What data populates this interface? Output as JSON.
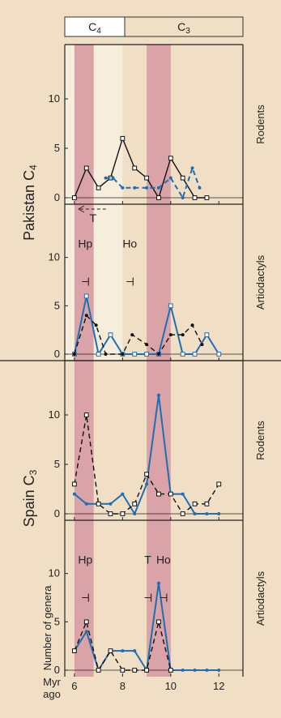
{
  "figure": {
    "bar_labels": [
      {
        "main": "C",
        "sub": "4"
      },
      {
        "main": "C",
        "sub": "3"
      }
    ],
    "side_groups": [
      {
        "main": "Pakistan C",
        "sub": "4"
      },
      {
        "main": "Spain C",
        "sub": "3"
      }
    ],
    "ylabel": "Number of genera",
    "xlabel_main": "Myr",
    "xlabel_sub": "ago",
    "colors": {
      "background": "#f1dfc5",
      "pale_band": "#f7eddc",
      "pink_band": "#d9a3a7",
      "blue": "#1f6eb3",
      "black": "#111111"
    }
  },
  "chart_data": [
    {
      "type": "line",
      "panel_label": "Rodents",
      "xlim": [
        5.6,
        13.0
      ],
      "ylim": [
        0,
        15
      ],
      "yticks": [
        0,
        5,
        10
      ],
      "xticks": [
        6,
        8,
        10,
        12
      ],
      "show_xtick_labels": false,
      "bands": [
        {
          "from": 5.6,
          "to": 8.0,
          "kind": "pale"
        },
        {
          "from": 6.0,
          "to": 6.8,
          "kind": "pink"
        },
        {
          "from": 9.0,
          "to": 10.0,
          "kind": "pink"
        }
      ],
      "series": [
        {
          "color": "black",
          "dash": false,
          "marker": "square",
          "x": [
            6.0,
            6.5,
            7.0,
            7.5,
            8.0,
            8.5,
            9.0,
            9.5,
            10.0,
            10.5,
            11.0,
            11.5
          ],
          "y": [
            0,
            3,
            1,
            2,
            6,
            3,
            2,
            0,
            4,
            2,
            0,
            0
          ]
        },
        {
          "color": "blue",
          "dash": true,
          "marker": "dot",
          "x": [
            7.3,
            7.6,
            8.0,
            8.5,
            9.0,
            9.5,
            10.0,
            10.5,
            10.9,
            11.2
          ],
          "y": [
            2,
            2,
            1,
            1,
            1,
            1,
            2,
            0,
            3,
            1
          ]
        }
      ],
      "annotations": [
        {
          "text": "T",
          "x": 6.3,
          "y": -2.0,
          "arrow": "left"
        }
      ]
    },
    {
      "type": "line",
      "panel_label": "Artiodactyls",
      "xlim": [
        5.6,
        13.0
      ],
      "ylim": [
        0,
        15
      ],
      "yticks": [
        0,
        5,
        10
      ],
      "xticks": [
        6,
        8,
        10,
        12
      ],
      "show_xtick_labels": false,
      "bands": [
        {
          "from": 5.6,
          "to": 8.0,
          "kind": "pale"
        },
        {
          "from": 6.0,
          "to": 6.8,
          "kind": "pink"
        },
        {
          "from": 9.0,
          "to": 10.0,
          "kind": "pink"
        }
      ],
      "series": [
        {
          "color": "blue",
          "dash": false,
          "marker": "square",
          "x": [
            6.0,
            6.5,
            7.0,
            7.5,
            8.0,
            8.5,
            9.0,
            9.5,
            10.0,
            10.5,
            11.0,
            11.5,
            12.0
          ],
          "y": [
            0,
            6,
            0,
            2,
            0,
            0,
            0,
            0,
            5,
            0,
            0,
            2,
            0
          ]
        },
        {
          "color": "black",
          "dash": true,
          "marker": "dot",
          "x": [
            6.0,
            6.5,
            6.9,
            7.3,
            8.0,
            8.4,
            9.0,
            9.5,
            10.0,
            10.5,
            10.9,
            11.3
          ],
          "y": [
            0,
            4,
            3,
            0,
            0,
            2,
            1,
            0,
            2,
            2,
            3,
            1
          ]
        }
      ],
      "annotations": [
        {
          "text": "Hp",
          "x": 6.45,
          "y": 11.0,
          "marker_y": 7.5
        },
        {
          "text": "Ho",
          "x": 8.3,
          "y": 11.0,
          "marker_y": 7.5
        }
      ]
    },
    {
      "type": "line",
      "panel_label": "Rodents",
      "xlim": [
        5.6,
        13.0
      ],
      "ylim": [
        0,
        15
      ],
      "yticks": [
        0,
        5,
        10
      ],
      "xticks": [
        6,
        8,
        10,
        12
      ],
      "show_xtick_labels": false,
      "bands": [
        {
          "from": 6.0,
          "to": 6.8,
          "kind": "pink"
        },
        {
          "from": 9.0,
          "to": 10.0,
          "kind": "pink"
        }
      ],
      "series": [
        {
          "color": "blue",
          "dash": false,
          "marker": "dot",
          "x": [
            6.0,
            6.5,
            7.0,
            7.5,
            8.0,
            8.5,
            9.0,
            9.5,
            10.0,
            10.5,
            11.0,
            11.5,
            12.0
          ],
          "y": [
            2,
            1,
            1,
            1,
            2,
            0,
            3,
            12,
            2,
            2,
            0,
            0,
            0
          ]
        },
        {
          "color": "black",
          "dash": true,
          "marker": "square",
          "x": [
            6.0,
            6.5,
            7.0,
            7.5,
            8.0,
            8.5,
            9.0,
            9.5,
            10.0,
            10.5,
            11.0,
            11.5,
            12.0
          ],
          "y": [
            3,
            10,
            1,
            0,
            0,
            1,
            4,
            2,
            2,
            0,
            1,
            1,
            3
          ]
        }
      ],
      "annotations": []
    },
    {
      "type": "line",
      "panel_label": "Artiodactyls",
      "xlim": [
        5.6,
        13.0
      ],
      "ylim": [
        0,
        15
      ],
      "yticks": [
        0,
        5,
        10
      ],
      "xticks": [
        6,
        8,
        10,
        12
      ],
      "show_xtick_labels": true,
      "bands": [
        {
          "from": 6.0,
          "to": 6.8,
          "kind": "pink"
        },
        {
          "from": 9.0,
          "to": 10.0,
          "kind": "pink"
        }
      ],
      "series": [
        {
          "color": "blue",
          "dash": false,
          "marker": "dot",
          "x": [
            6.0,
            6.5,
            7.0,
            7.5,
            8.0,
            8.5,
            9.0,
            9.5,
            10.0,
            10.5,
            11.0,
            11.5,
            12.0
          ],
          "y": [
            2,
            4,
            0,
            2,
            2,
            2,
            0,
            9,
            0,
            0,
            0,
            0,
            0
          ]
        },
        {
          "color": "black",
          "dash": true,
          "marker": "square",
          "x": [
            6.0,
            6.5,
            7.0,
            7.5,
            8.0,
            8.5,
            9.0,
            9.5,
            10.0
          ],
          "y": [
            2,
            5,
            0,
            2,
            0,
            0,
            0,
            5,
            0
          ]
        }
      ],
      "annotations": [
        {
          "text": "Hp",
          "x": 6.45,
          "y": 11.0,
          "marker_y": 7.5
        },
        {
          "text": "T",
          "x": 9.05,
          "y": 11.0,
          "marker_y": 7.5
        },
        {
          "text": "Ho",
          "x": 9.7,
          "y": 11.0,
          "marker_y": 7.5
        }
      ]
    }
  ]
}
